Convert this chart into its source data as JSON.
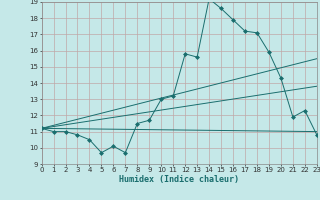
{
  "xlabel": "Humidex (Indice chaleur)",
  "xlim": [
    0,
    23
  ],
  "ylim": [
    9,
    19
  ],
  "yticks": [
    9,
    10,
    11,
    12,
    13,
    14,
    15,
    16,
    17,
    18,
    19
  ],
  "xticks": [
    0,
    1,
    2,
    3,
    4,
    5,
    6,
    7,
    8,
    9,
    10,
    11,
    12,
    13,
    14,
    15,
    16,
    17,
    18,
    19,
    20,
    21,
    22,
    23
  ],
  "background_color": "#c5e8e8",
  "grid_color": "#c0a8a8",
  "line_color": "#1a6e6e",
  "series": {
    "main_line": {
      "x": [
        0,
        1,
        2,
        3,
        4,
        5,
        6,
        7,
        8,
        9,
        10,
        11,
        12,
        13,
        14,
        15,
        16,
        17,
        18,
        19,
        20,
        21,
        22,
        23
      ],
      "y": [
        11.2,
        11.0,
        11.0,
        10.8,
        10.5,
        9.7,
        10.1,
        9.7,
        11.5,
        11.7,
        13.0,
        13.2,
        15.8,
        15.6,
        19.2,
        18.6,
        17.9,
        17.2,
        17.1,
        15.9,
        14.3,
        11.9,
        12.3,
        10.8
      ]
    },
    "line2": {
      "x": [
        0,
        23
      ],
      "y": [
        11.2,
        11.0
      ]
    },
    "line3": {
      "x": [
        0,
        23
      ],
      "y": [
        11.2,
        13.8
      ]
    },
    "line4": {
      "x": [
        0,
        23
      ],
      "y": [
        11.2,
        15.5
      ]
    }
  }
}
